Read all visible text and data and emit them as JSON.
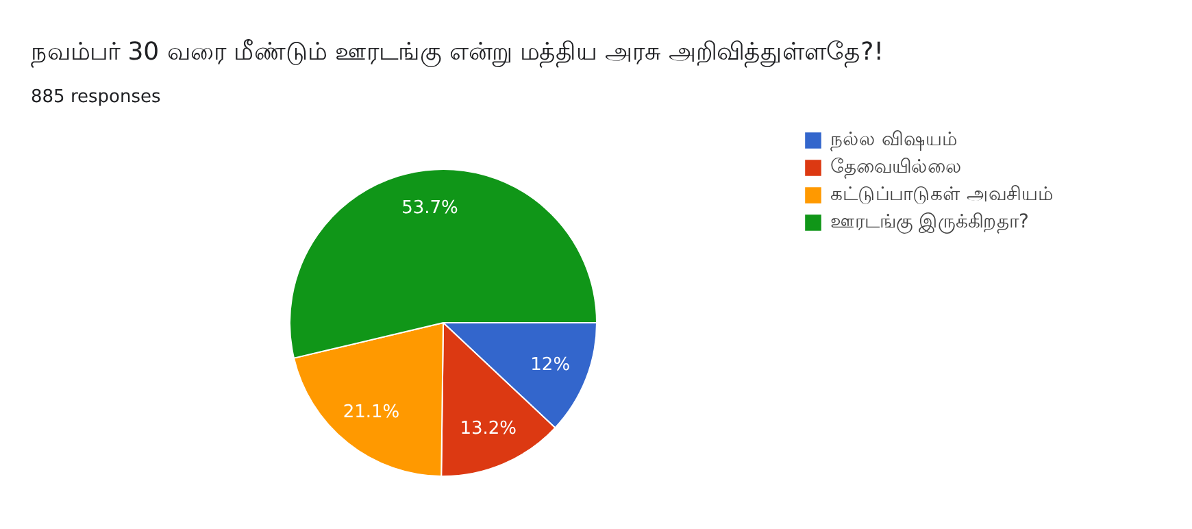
{
  "chart_data": {
    "type": "pie",
    "title": "நவம்பர் 30 வரை மீண்டும் ஊரடங்கு என்று மத்திய அரசு அறிவித்துள்ளதே?!",
    "subtitle": "885 responses",
    "categories": [
      "நல்ல விஷயம்",
      "தேவையில்லை",
      "கட்டுப்பாடுகள் அவசியம்",
      "ஊரடங்கு இருக்கிறதா?"
    ],
    "values": [
      12,
      13.2,
      21.1,
      53.7
    ],
    "colors": [
      "#3366cc",
      "#dc3912",
      "#ff9900",
      "#109618"
    ],
    "value_labels": [
      "12%",
      "13.2%",
      "21.1%",
      "53.7%"
    ],
    "legend": "right"
  }
}
